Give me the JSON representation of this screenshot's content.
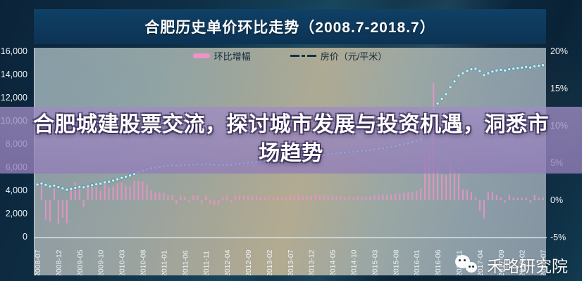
{
  "title_bar": {
    "title": "合肥历史单价环比走势（2008.7-2018.7）"
  },
  "legend": [
    {
      "label": "环比增幅",
      "swatch": "pink-bar",
      "color": "#ee93c9"
    },
    {
      "label": "房价（元/平米）",
      "swatch": "dash-dot-line",
      "color": "#14314a"
    }
  ],
  "overlay": {
    "headline": "合肥城建股票交流，探讨城市发展与投资机遇，洞悉市场趋势"
  },
  "watermark": {
    "name": "禾略研究院",
    "icon": "wechat-icon"
  },
  "chart_data": {
    "type": "bar+line",
    "title": "合肥历史单价环比走势（2008.7-2018.7）",
    "x_start": "2008-07",
    "x_end": "2018-07",
    "x_tick_labels": [
      "2008-07",
      "2008-12",
      "2009-05",
      "2009-10",
      "2010-03",
      "2010-08",
      "2011-01",
      "2011-06",
      "2011-11",
      "2012-04",
      "2012-09",
      "2013-02",
      "2013-07",
      "2013-12",
      "2014-05",
      "2014-10",
      "2015-03",
      "2015-08",
      "2016-01",
      "2016-06",
      "2016-11",
      "2017-04",
      "2017-09",
      "2018-02",
      "2018-07"
    ],
    "left_axis": {
      "label": "房价（元/平米）",
      "min": 0,
      "max": 16000,
      "ticks": [
        "16,000",
        "14,000",
        "12,000",
        "10,000",
        "8,000",
        "6,000",
        "4,000",
        "2,000",
        "0"
      ]
    },
    "right_axis": {
      "label": "环比增幅",
      "min": -5,
      "max": 20,
      "ticks": [
        "20%",
        "15%",
        "10%",
        "5%",
        "0%",
        "-5%"
      ]
    },
    "grid": false,
    "legend_position": "top-center",
    "series": [
      {
        "name": "环比增幅",
        "type": "bar",
        "axis": "right",
        "unit": "%",
        "color": "#ea93c7",
        "note": "month-over-month percent change, derived from 房价 monthly values"
      },
      {
        "name": "房价（元/平米）",
        "type": "line",
        "style": "dotted",
        "axis": "left",
        "color": "#cdeef5",
        "values": [
          4500,
          4600,
          4480,
          4350,
          4420,
          4280,
          4180,
          4050,
          4120,
          4220,
          4300,
          4260,
          4350,
          4440,
          4520,
          4580,
          4680,
          4760,
          4850,
          4960,
          5080,
          5180,
          5280,
          5420,
          5560,
          5700,
          5820,
          5900,
          5960,
          6020,
          6080,
          6120,
          6160,
          6130,
          6170,
          6200,
          6180,
          6220,
          6260,
          6230,
          6270,
          6240,
          6200,
          6160,
          6190,
          6230,
          6210,
          6250,
          6290,
          6330,
          6370,
          6410,
          6450,
          6480,
          6510,
          6540,
          6570,
          6600,
          6630,
          6660,
          6700,
          6740,
          6790,
          6830,
          6870,
          6910,
          6960,
          7010,
          7060,
          7100,
          7150,
          7190,
          7230,
          7260,
          7300,
          7330,
          7370,
          7400,
          7440,
          7480,
          7530,
          7580,
          7640,
          7700,
          7760,
          7830,
          7900,
          7980,
          8060,
          8150,
          8250,
          8380,
          8900,
          9500,
          11000,
          11500,
          11900,
          12300,
          12900,
          13400,
          13900,
          14100,
          14300,
          14450,
          14500,
          14300,
          13950,
          14100,
          14250,
          14350,
          14400,
          14350,
          14450,
          14500,
          14550,
          14600,
          14650,
          14600,
          14700,
          14750,
          14800
        ]
      }
    ]
  }
}
